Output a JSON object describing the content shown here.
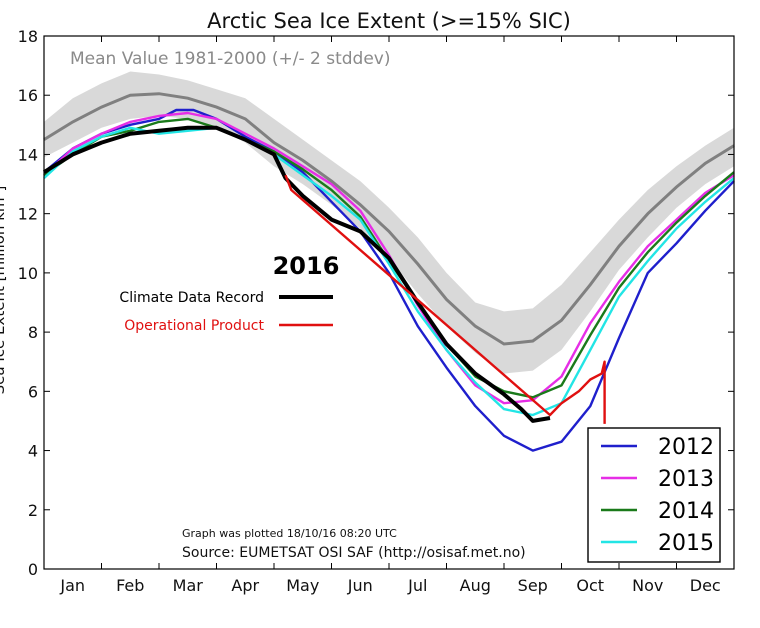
{
  "chart_data": {
    "type": "line",
    "title": "Arctic Sea Ice Extent (>=15% SIC)",
    "ylabel": "Sea Ice Extent [million km²]",
    "xlabel": "",
    "ylim": [
      0,
      18
    ],
    "yticks": [
      0,
      2,
      4,
      6,
      8,
      10,
      12,
      14,
      16,
      18
    ],
    "xlim": [
      0,
      12
    ],
    "months": [
      "Jan",
      "Feb",
      "Mar",
      "Apr",
      "May",
      "Jun",
      "Jul",
      "Aug",
      "Sep",
      "Oct",
      "Nov",
      "Dec"
    ],
    "band_label": "Mean Value 1981-2000 (+/- 2 stddev)",
    "mean": {
      "name": "Mean 1981-2000",
      "color": "#808080",
      "x": [
        0,
        0.5,
        1,
        1.5,
        2,
        2.5,
        3,
        3.5,
        4,
        4.5,
        5,
        5.5,
        6,
        6.5,
        7,
        7.5,
        8,
        8.5,
        9,
        9.5,
        10,
        10.5,
        11,
        11.5,
        12
      ],
      "values": [
        14.5,
        15.1,
        15.6,
        16.0,
        16.05,
        15.9,
        15.6,
        15.2,
        14.4,
        13.8,
        13.1,
        12.3,
        11.4,
        10.3,
        9.1,
        8.2,
        7.6,
        7.7,
        8.4,
        9.6,
        10.9,
        12.0,
        12.9,
        13.7,
        14.3
      ]
    },
    "band": {
      "color": "#d9d9d9",
      "upper": [
        15.1,
        15.9,
        16.4,
        16.8,
        16.7,
        16.5,
        16.2,
        15.9,
        15.2,
        14.5,
        13.8,
        13.1,
        12.2,
        11.2,
        10.0,
        9.0,
        8.7,
        8.8,
        9.6,
        10.7,
        11.8,
        12.8,
        13.6,
        14.3,
        14.9
      ],
      "lower": [
        13.9,
        14.4,
        14.9,
        15.2,
        15.3,
        15.2,
        14.9,
        14.4,
        13.6,
        13.0,
        12.3,
        11.5,
        10.5,
        9.3,
        8.2,
        7.3,
        6.6,
        6.7,
        7.4,
        8.7,
        10.1,
        11.2,
        12.2,
        13.0,
        13.6
      ]
    },
    "series": [
      {
        "name": "2012",
        "color": "#1f1fcc",
        "x": [
          0,
          0.5,
          1,
          1.5,
          2,
          2.3,
          2.6,
          3,
          3.5,
          4,
          4.5,
          5,
          5.5,
          6,
          6.5,
          7,
          7.5,
          8,
          8.5,
          9,
          9.5,
          10,
          10.5,
          11,
          11.5,
          12
        ],
        "values": [
          13.4,
          14.2,
          14.7,
          15.0,
          15.2,
          15.5,
          15.5,
          15.2,
          14.6,
          14.1,
          13.4,
          12.4,
          11.4,
          10.0,
          8.2,
          6.8,
          5.5,
          4.5,
          4.0,
          4.3,
          5.5,
          7.8,
          10.0,
          11.0,
          12.1,
          13.1
        ]
      },
      {
        "name": "2013",
        "color": "#e62ee6",
        "x": [
          0,
          0.5,
          1,
          1.5,
          2,
          2.5,
          3,
          3.5,
          4,
          4.5,
          5,
          5.5,
          6,
          6.5,
          7,
          7.5,
          8,
          8.5,
          9,
          9.5,
          10,
          10.5,
          11,
          11.5,
          12
        ],
        "values": [
          13.3,
          14.2,
          14.7,
          15.1,
          15.3,
          15.4,
          15.2,
          14.7,
          14.2,
          13.6,
          13.0,
          12.1,
          10.6,
          8.9,
          7.4,
          6.2,
          5.6,
          5.7,
          6.5,
          8.3,
          9.7,
          10.9,
          11.8,
          12.7,
          13.3
        ]
      },
      {
        "name": "2014",
        "color": "#1a7a1a",
        "x": [
          0,
          0.5,
          1,
          1.5,
          2,
          2.5,
          3,
          3.5,
          4,
          4.5,
          5,
          5.5,
          6,
          6.5,
          7,
          7.5,
          8,
          8.5,
          9,
          9.5,
          10,
          10.5,
          11,
          11.5,
          12
        ],
        "values": [
          13.3,
          14.0,
          14.6,
          14.8,
          15.1,
          15.2,
          14.9,
          14.5,
          14.1,
          13.5,
          12.8,
          11.9,
          10.4,
          9.0,
          7.6,
          6.5,
          6.0,
          5.8,
          6.2,
          7.9,
          9.5,
          10.7,
          11.7,
          12.6,
          13.4
        ]
      },
      {
        "name": "2015",
        "color": "#22e5e5",
        "x": [
          0,
          0.5,
          1,
          1.5,
          2,
          2.5,
          3,
          3.5,
          4,
          4.5,
          5,
          5.5,
          6,
          6.5,
          7,
          7.5,
          8,
          8.5,
          9,
          9.5,
          10,
          10.5,
          11,
          11.5,
          12
        ],
        "values": [
          13.2,
          14.1,
          14.6,
          14.9,
          14.7,
          14.8,
          14.9,
          14.5,
          14.0,
          13.3,
          12.6,
          11.8,
          10.3,
          8.7,
          7.4,
          6.3,
          5.4,
          5.2,
          5.6,
          7.4,
          9.2,
          10.4,
          11.5,
          12.4,
          13.2
        ]
      },
      {
        "name": "2016 Climate Data Record",
        "color": "#000000",
        "x": [
          0,
          0.5,
          1,
          1.5,
          2,
          2.5,
          3,
          3.5,
          4,
          4.2,
          4.5,
          5,
          5.5,
          6,
          6.5,
          7,
          7.5,
          8,
          8.3,
          8.5,
          8.8
        ],
        "values": [
          13.4,
          14.0,
          14.4,
          14.7,
          14.8,
          14.9,
          14.9,
          14.5,
          14.0,
          13.2,
          12.6,
          11.8,
          11.4,
          10.5,
          9.0,
          7.6,
          6.6,
          5.9,
          5.4,
          5.0,
          5.1
        ]
      },
      {
        "name": "2016 Operational Product",
        "color": "#e01010",
        "x": [
          4.2,
          4.3,
          8.8,
          9.0,
          9.3,
          9.5,
          9.7,
          9.75,
          9.75
        ],
        "values": [
          13.3,
          12.8,
          5.2,
          5.6,
          6.0,
          6.4,
          6.6,
          7.0,
          4.9
        ]
      }
    ],
    "annotation_year": "2016",
    "annotation_entries": [
      {
        "label": "Climate Data Record",
        "color": "#000000"
      },
      {
        "label": "Operational Product",
        "color": "#e01010"
      }
    ],
    "legend": [
      "2012",
      "2013",
      "2014",
      "2015"
    ],
    "legend_position": "bottom-right",
    "footer": {
      "plotted": "Graph was plotted 18/10/16 08:20 UTC",
      "source": "Source: EUMETSAT OSI SAF (http://osisaf.met.no)"
    }
  }
}
